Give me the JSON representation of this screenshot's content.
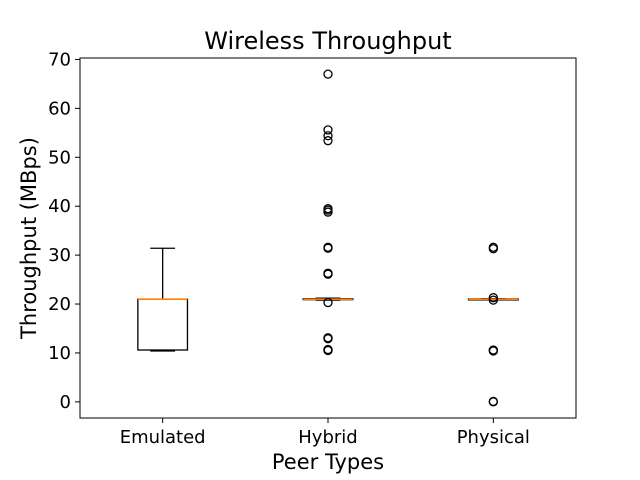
{
  "chart_data": {
    "type": "box",
    "title": "Wireless Throughput",
    "xlabel": "Peer Types",
    "ylabel": "Throughput (MBps)",
    "ylim": [
      -3.3,
      70.3
    ],
    "yticks": [
      0,
      10,
      20,
      30,
      40,
      50,
      60,
      70
    ],
    "grid": false,
    "categories": [
      "Emulated",
      "Hybrid",
      "Physical"
    ],
    "boxes": [
      {
        "whisker_low": 10.4,
        "q1": 10.6,
        "median": 21.0,
        "q3": 21.0,
        "whisker_high": 31.4,
        "outliers": []
      },
      {
        "whisker_low": 20.8,
        "q1": 20.9,
        "median": 21.0,
        "q3": 21.1,
        "whisker_high": 21.2,
        "outliers": [
          10.5,
          10.6,
          10.7,
          12.9,
          13.0,
          13.1,
          20.3,
          26.1,
          26.3,
          31.4,
          31.6,
          38.8,
          39.2,
          39.5,
          53.4,
          54.4,
          55.6,
          67.0
        ]
      },
      {
        "whisker_low": 20.9,
        "q1": 20.95,
        "median": 21.0,
        "q3": 21.05,
        "whisker_high": 21.1,
        "outliers": [
          0.0,
          0.1,
          10.4,
          10.5,
          10.6,
          20.8,
          21.3,
          31.3,
          31.6
        ]
      }
    ],
    "colors": {
      "box": "#000000",
      "median": "#ff7f0e",
      "outlier": "#000000"
    }
  }
}
